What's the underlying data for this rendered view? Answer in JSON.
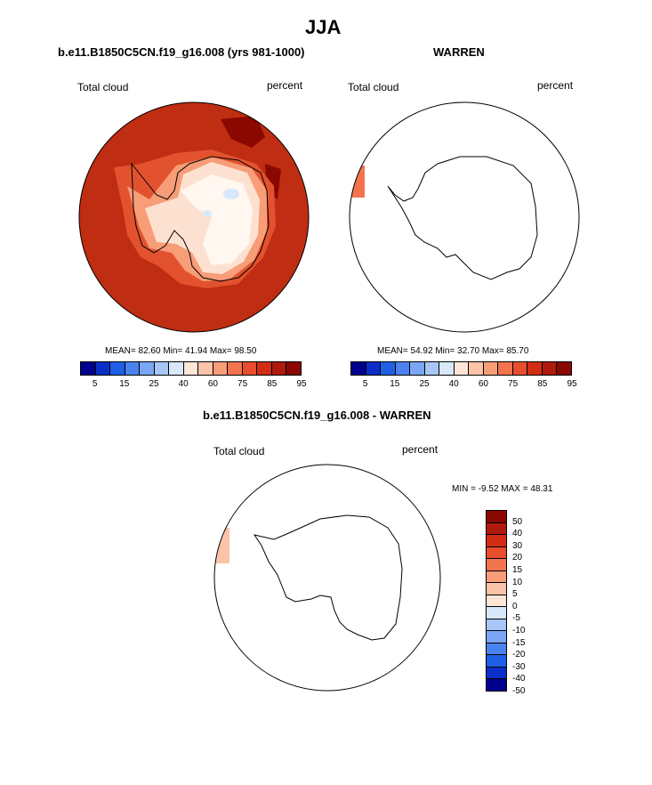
{
  "title": "JJA",
  "panels": {
    "top_left": {
      "title": "b.e11.B1850C5CN.f19_g16.008 (yrs 981-1000)",
      "variable": "Total cloud",
      "units": "percent",
      "stats": "MEAN=  82.60  Min=  41.94  Max=  98.50"
    },
    "top_right": {
      "title": "WARREN",
      "variable": "Total cloud",
      "units": "percent",
      "stats": "MEAN=  54.92  Min=  32.70  Max=  85.70"
    },
    "bottom": {
      "title": "b.e11.B1850C5CN.f19_g16.008 - WARREN",
      "variable": "Total cloud",
      "units": "percent",
      "stats": "MIN =  -9.52 MAX =  48.31"
    }
  },
  "colorbar_top": {
    "colors": [
      "#00008f",
      "#0a2fc8",
      "#1f5fe6",
      "#4a82f0",
      "#7aa6f5",
      "#a7c6f7",
      "#d8e8fa",
      "#fde6d6",
      "#fbc3a8",
      "#f79d78",
      "#f2744f",
      "#e84e2e",
      "#d22d14",
      "#b01a0d",
      "#8a0800"
    ],
    "tick_labels": [
      "5",
      "15",
      "25",
      "40",
      "60",
      "75",
      "85",
      "95"
    ]
  },
  "colorbar_diff": {
    "colors": [
      "#8a0800",
      "#b01a0d",
      "#d22d14",
      "#e84e2e",
      "#f2744f",
      "#f79d78",
      "#fbc3a8",
      "#fde6d6",
      "#d8e8fa",
      "#a7c6f7",
      "#7aa6f5",
      "#4a82f0",
      "#1f5fe6",
      "#0a2fc8",
      "#00008f"
    ],
    "tick_labels": [
      "50",
      "40",
      "30",
      "20",
      "15",
      "10",
      "5",
      "0",
      "-5",
      "-10",
      "-15",
      "-20",
      "-30",
      "-40",
      "-50"
    ]
  },
  "map_colors": {
    "background": "#bf2d12",
    "darkest": "#8a0800",
    "mid": "#e2522e",
    "light": "#f79d78",
    "pale": "#fde1d0",
    "white": "#fff7f0",
    "blue": "#d8e8fa",
    "strip_right": "#f2744f",
    "strip_bottom": "#fbc3a8"
  }
}
